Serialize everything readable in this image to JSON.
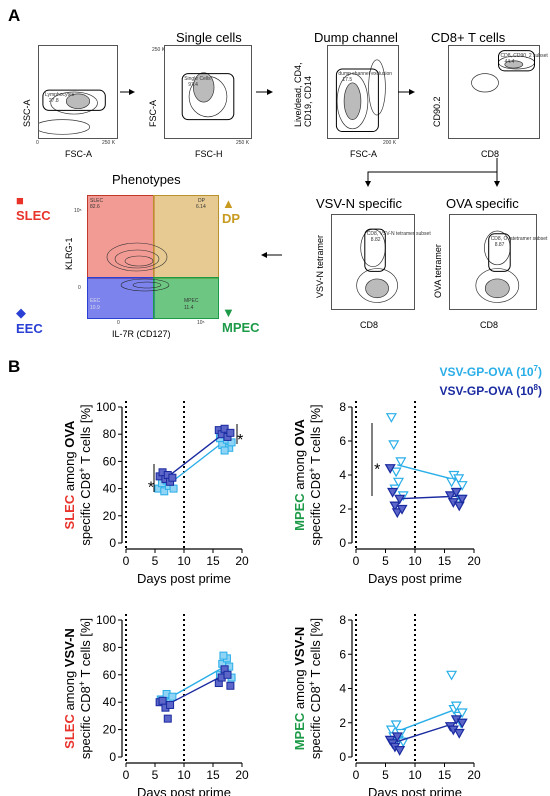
{
  "panel_a": {
    "letter": "A",
    "plots": [
      {
        "title": "",
        "xlabel": "FSC-A",
        "ylabel": "SSC-A",
        "gate": "Lymphocytes",
        "gate_value": "27.8",
        "xtick": "250 K",
        "xtick0": "0",
        "ytick0": "0"
      },
      {
        "title": "Single cells",
        "xlabel": "FSC-H",
        "ylabel": "FSC-A",
        "gate": "Single Cells",
        "gate_value": "97.4",
        "xtick": "250 K",
        "ytick": "250 K"
      },
      {
        "title": "Dump channel",
        "xlabel": "FSC-A",
        "ylabel": "Live/dead, CD4, CD19, CD14",
        "gate": "dump channel exclusion",
        "gate_value": "17.5",
        "xtick": "200 K"
      },
      {
        "title": "CD8+ T cells",
        "xlabel": "CD8",
        "ylabel": "CD90.2",
        "gate": "CD8, CD90_2 subset",
        "gate_value": "44.4"
      },
      {
        "title": "VSV-N specific",
        "xlabel": "CD8",
        "ylabel": "VSV-N tetramer",
        "gate": "CD8, VSV-N tetramer subset",
        "gate_value": "8.82"
      },
      {
        "title": "OVA specific",
        "xlabel": "CD8",
        "ylabel": "OVA tetramer",
        "gate": "CD8, Ovatetramer subset",
        "gate_value": "8.87"
      }
    ],
    "phenotypes": {
      "title": "Phenotypes",
      "xlabel": "IL-7R (CD127)",
      "ylabel": "KLRG-1",
      "quadrants": [
        {
          "name": "SLEC",
          "value": "82.6",
          "color": "#e8322a"
        },
        {
          "name": "DP",
          "value": "6.14",
          "color": "#d8a82a"
        },
        {
          "name": "EEC",
          "value": "10.9",
          "color": "#3f4ce0"
        },
        {
          "name": "MPEC",
          "value": "11.4",
          "color": "#23a048"
        }
      ],
      "legend": [
        {
          "symbol": "■",
          "label": "SLEC",
          "color": "#e8322a"
        },
        {
          "symbol": "▲",
          "label": "DP",
          "color": "#c89a20"
        },
        {
          "symbol": "◆",
          "label": "EEC",
          "color": "#2a3fd4"
        },
        {
          "symbol": "▼",
          "label": "MPEC",
          "color": "#1d9a48"
        }
      ],
      "xtick0": "0",
      "xtick1": "10⁵",
      "ytick0": "0",
      "ytick1": "10⁵"
    }
  },
  "panel_b": {
    "letter": "B",
    "legend": [
      {
        "label": "VSV-GP-OVA (10",
        "exp": "7",
        "suffix": ")",
        "color": "#29aee8"
      },
      {
        "label": "VSV-GP-OVA (10",
        "exp": "8",
        "suffix": ")",
        "color": "#1a2aa0"
      }
    ]
  },
  "chart_data": [
    {
      "type": "scatter",
      "ylabel_parts": [
        {
          "t": "SLEC",
          "c": "#e8322a"
        },
        {
          "t": " among ",
          "c": "#000"
        },
        {
          "t": "OVA",
          "c": "#000",
          "b": true
        }
      ],
      "ylabel_line2": "specific CD8",
      "ylabel_sup": "+",
      "ylabel_tail": " T cells [%]",
      "xlabel": "Days post prime",
      "marker": "square",
      "xlim": [
        0,
        20
      ],
      "ylim": [
        0,
        100
      ],
      "xticks": [
        0,
        5,
        10,
        15,
        20
      ],
      "yticks": [
        0,
        20,
        40,
        60,
        80,
        100
      ],
      "vlines": [
        0,
        10
      ],
      "series": [
        {
          "name": "VSV-GP-OVA (10^7)",
          "color": "#29aee8",
          "points": [
            [
              5.6,
              40
            ],
            [
              6.2,
              44
            ],
            [
              6.6,
              38
            ],
            [
              7.0,
              46
            ],
            [
              7.4,
              42
            ],
            [
              7.8,
              48
            ],
            [
              8.2,
              40
            ],
            [
              16.2,
              77
            ],
            [
              16.6,
              72
            ],
            [
              17.0,
              80
            ],
            [
              17.4,
              76
            ],
            [
              17.8,
              70
            ],
            [
              18.2,
              74
            ],
            [
              17.0,
              68
            ]
          ],
          "line": [
            [
              7,
              42
            ],
            [
              17,
              75
            ]
          ]
        },
        {
          "name": "VSV-GP-OVA (10^8)",
          "color": "#1a2aa0",
          "points": [
            [
              5.8,
              49
            ],
            [
              6.3,
              52
            ],
            [
              6.8,
              47
            ],
            [
              7.2,
              50
            ],
            [
              7.6,
              45
            ],
            [
              8.0,
              48
            ],
            [
              16.0,
              83
            ],
            [
              16.5,
              80
            ],
            [
              17.0,
              84
            ],
            [
              17.5,
              78
            ],
            [
              18.0,
              81
            ]
          ],
          "line": [
            [
              7,
              48
            ],
            [
              17,
              81
            ]
          ]
        }
      ],
      "annotations": [
        {
          "text": "*",
          "x": 4.3,
          "y": 43
        },
        {
          "text": "*",
          "x": 19.7,
          "y": 78
        }
      ]
    },
    {
      "type": "scatter",
      "ylabel_parts": [
        {
          "t": "MPEC",
          "c": "#1d9a48"
        },
        {
          "t": " among ",
          "c": "#000"
        },
        {
          "t": "OVA",
          "c": "#000",
          "b": true
        }
      ],
      "ylabel_line2": "specific CD8",
      "ylabel_sup": "+",
      "ylabel_tail": " T cells [%]",
      "xlabel": "Days post prime",
      "marker": "triangle-down",
      "xlim": [
        0,
        20
      ],
      "ylim": [
        0,
        8
      ],
      "xticks": [
        0,
        5,
        10,
        15,
        20
      ],
      "yticks": [
        0,
        2,
        4,
        6,
        8
      ],
      "vlines": [
        0,
        10
      ],
      "series": [
        {
          "name": "VSV-GP-OVA (10^7)",
          "color": "#29aee8",
          "points": [
            [
              6.0,
              7.4
            ],
            [
              6.4,
              5.8
            ],
            [
              6.8,
              4.2
            ],
            [
              7.2,
              3.6
            ],
            [
              7.6,
              4.8
            ],
            [
              8.0,
              2.8
            ],
            [
              6.6,
              3.2
            ],
            [
              16.2,
              3.6
            ],
            [
              16.6,
              4.0
            ],
            [
              17.0,
              3.0
            ],
            [
              17.4,
              3.8
            ],
            [
              17.8,
              2.6
            ],
            [
              18.0,
              3.4
            ]
          ],
          "line": [
            [
              7,
              4.6
            ],
            [
              17,
              3.7
            ]
          ]
        },
        {
          "name": "VSV-GP-OVA (10^8)",
          "color": "#1a2aa0",
          "points": [
            [
              5.8,
              4.4
            ],
            [
              6.2,
              3.0
            ],
            [
              6.6,
              2.2
            ],
            [
              7.0,
              1.8
            ],
            [
              7.4,
              2.6
            ],
            [
              7.8,
              2.0
            ],
            [
              16.0,
              2.8
            ],
            [
              16.5,
              2.4
            ],
            [
              17.0,
              3.0
            ],
            [
              17.5,
              2.2
            ],
            [
              18.0,
              2.6
            ]
          ],
          "line": [
            [
              7,
              2.6
            ],
            [
              17,
              2.75
            ]
          ]
        }
      ],
      "annotations": [
        {
          "text": "*",
          "x": 3.6,
          "y": 4.5
        }
      ]
    },
    {
      "type": "scatter",
      "ylabel_parts": [
        {
          "t": "SLEC",
          "c": "#e8322a"
        },
        {
          "t": " among ",
          "c": "#000"
        },
        {
          "t": "VSV-N",
          "c": "#000",
          "b": true
        }
      ],
      "ylabel_line2": "specific CD8",
      "ylabel_sup": "+",
      "ylabel_tail": " T cells [%]",
      "xlabel": "Days post prime",
      "marker": "square",
      "xlim": [
        0,
        20
      ],
      "ylim": [
        0,
        100
      ],
      "xticks": [
        0,
        5,
        10,
        15,
        20
      ],
      "yticks": [
        0,
        20,
        40,
        60,
        80,
        100
      ],
      "vlines": [
        0,
        10
      ],
      "series": [
        {
          "name": "VSV-GP-OVA (10^7)",
          "color": "#29aee8",
          "points": [
            [
              6.0,
              42
            ],
            [
              6.5,
              40
            ],
            [
              7.0,
              46
            ],
            [
              7.5,
              38
            ],
            [
              8.0,
              44
            ],
            [
              16.2,
              60
            ],
            [
              16.6,
              68
            ],
            [
              17.0,
              62
            ],
            [
              17.4,
              72
            ],
            [
              17.8,
              66
            ],
            [
              18.2,
              58
            ],
            [
              16.8,
              74
            ]
          ],
          "line": [
            [
              7,
              42
            ],
            [
              17,
              66
            ]
          ]
        },
        {
          "name": "VSV-GP-OVA (10^8)",
          "color": "#1a2aa0",
          "points": [
            [
              5.8,
              40
            ],
            [
              6.3,
              41
            ],
            [
              6.8,
              36
            ],
            [
              7.2,
              28
            ],
            [
              7.6,
              38
            ],
            [
              16.0,
              54
            ],
            [
              16.5,
              58
            ],
            [
              17.0,
              64
            ],
            [
              17.5,
              60
            ],
            [
              18.0,
              52
            ]
          ],
          "line": [
            [
              7,
              38
            ],
            [
              17,
              60
            ]
          ]
        }
      ],
      "annotations": []
    },
    {
      "type": "scatter",
      "ylabel_parts": [
        {
          "t": "MPEC",
          "c": "#1d9a48"
        },
        {
          "t": " among ",
          "c": "#000"
        },
        {
          "t": "VSV-N",
          "c": "#000",
          "b": true
        }
      ],
      "ylabel_line2": "specific CD8",
      "ylabel_sup": "+",
      "ylabel_tail": " T cells [%]",
      "xlabel": "Days post prime",
      "marker": "triangle-down",
      "xlim": [
        0,
        20
      ],
      "ylim": [
        0,
        8
      ],
      "xticks": [
        0,
        5,
        10,
        15,
        20
      ],
      "yticks": [
        0,
        2,
        4,
        6,
        8
      ],
      "vlines": [
        0,
        10
      ],
      "series": [
        {
          "name": "VSV-GP-OVA (10^7)",
          "color": "#29aee8",
          "points": [
            [
              6.0,
              1.6
            ],
            [
              6.4,
              1.2
            ],
            [
              6.8,
              1.9
            ],
            [
              7.2,
              1.0
            ],
            [
              7.6,
              1.4
            ],
            [
              8.0,
              0.9
            ],
            [
              16.2,
              4.8
            ],
            [
              16.6,
              2.8
            ],
            [
              17.0,
              3.0
            ],
            [
              17.4,
              2.4
            ],
            [
              17.8,
              2.0
            ],
            [
              18.0,
              2.6
            ]
          ],
          "line": [
            [
              7,
              1.5
            ],
            [
              17,
              2.8
            ]
          ]
        },
        {
          "name": "VSV-GP-OVA (10^8)",
          "color": "#1a2aa0",
          "points": [
            [
              5.8,
              1.0
            ],
            [
              6.2,
              0.8
            ],
            [
              6.6,
              0.6
            ],
            [
              7.0,
              1.2
            ],
            [
              7.4,
              0.4
            ],
            [
              16.0,
              1.8
            ],
            [
              16.5,
              1.6
            ],
            [
              17.0,
              2.2
            ],
            [
              17.5,
              1.4
            ],
            [
              18.0,
              2.0
            ]
          ],
          "line": [
            [
              7,
              0.9
            ],
            [
              17,
              2.0
            ]
          ]
        }
      ],
      "annotations": []
    }
  ]
}
